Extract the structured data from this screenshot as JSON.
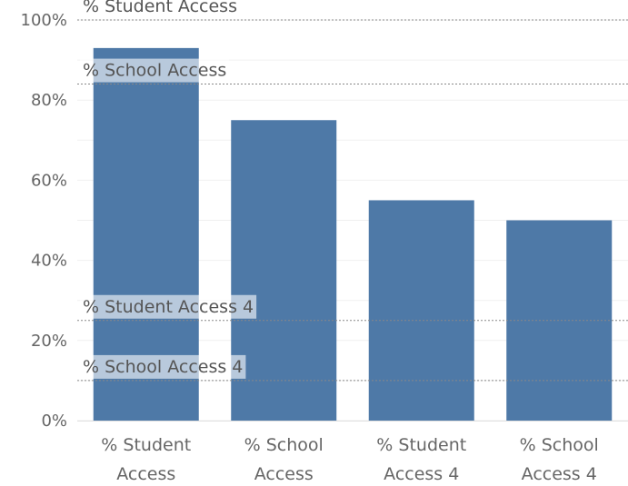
{
  "chart_data": {
    "type": "bar",
    "categories": [
      [
        "% Student",
        "Access"
      ],
      [
        "% School",
        "Access"
      ],
      [
        "% Student",
        "Access 4"
      ],
      [
        "% School",
        "Access 4"
      ]
    ],
    "values": [
      93,
      75,
      55,
      50
    ],
    "ylim": [
      0,
      100
    ],
    "yticks": [
      "0%",
      "20%",
      "40%",
      "60%",
      "80%",
      "100%"
    ],
    "ytick_values": [
      0,
      20,
      40,
      60,
      80,
      100
    ],
    "reference_lines": [
      {
        "label": "% Student Access",
        "value": 100
      },
      {
        "label": "% School Access",
        "value": 84
      },
      {
        "label": "% Student Access 4",
        "value": 25
      },
      {
        "label": "% School Access 4",
        "value": 10
      }
    ],
    "bar_color": "#4e79a7",
    "grid": true
  }
}
